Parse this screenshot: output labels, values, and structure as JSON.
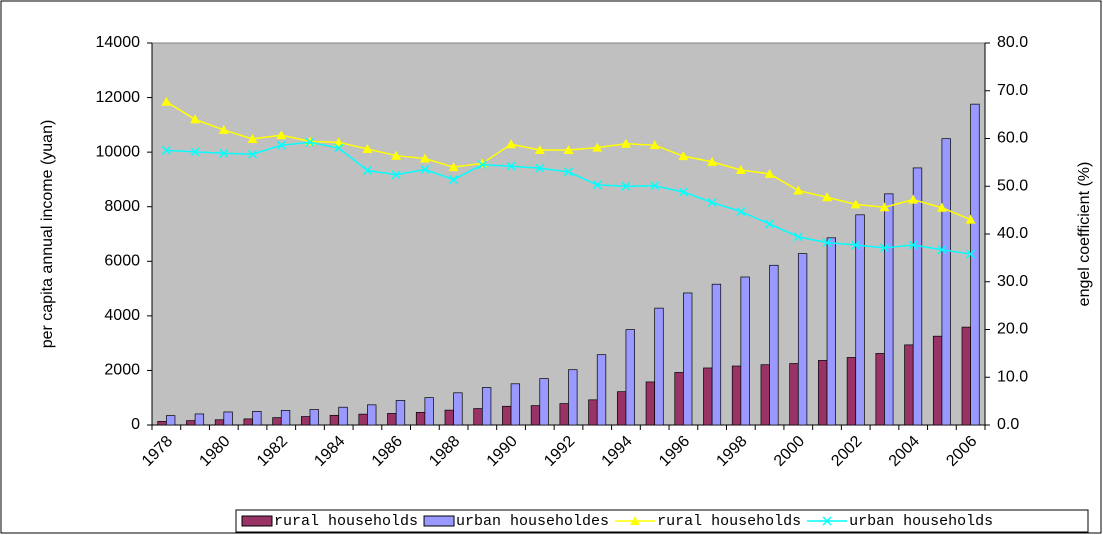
{
  "chart_data": {
    "type": "bar",
    "y_label": "per capita annual income (yuan)",
    "y2_label": "engel coefficient (%)",
    "categories": [
      "1978",
      null,
      "1980",
      null,
      "1982",
      null,
      "1984",
      null,
      "1986",
      null,
      "1988",
      null,
      "1990",
      null,
      "1992",
      null,
      "1994",
      null,
      "1996",
      null,
      "1998",
      null,
      "2000",
      null,
      "2002",
      null,
      "2004",
      null,
      "2006"
    ],
    "ylim": [
      0,
      14000
    ],
    "yticks": [
      0,
      2000,
      4000,
      6000,
      8000,
      10000,
      12000,
      14000
    ],
    "y2lim": [
      0,
      80
    ],
    "y2ticks": [
      {
        "value": 0,
        "label": "0.0"
      },
      {
        "value": 10,
        "label": "10.0"
      },
      {
        "value": 20,
        "label": "20.0"
      },
      {
        "value": 30,
        "label": "30.0"
      },
      {
        "value": 40,
        "label": "40.0"
      },
      {
        "value": 50,
        "label": "50.0"
      },
      {
        "value": 60,
        "label": "60.0"
      },
      {
        "value": 70,
        "label": "70.0"
      },
      {
        "value": 80,
        "label": "80.0"
      }
    ],
    "plot_background": "#c0c0c0",
    "legend": "bottom",
    "series": [
      {
        "name": "rural households",
        "type": "bar",
        "color": "#993366",
        "values": [
          134,
          160,
          191,
          223,
          270,
          310,
          355,
          398,
          424,
          463,
          545,
          602,
          686,
          709,
          784,
          922,
          1221,
          1578,
          1926,
          2090,
          2162,
          2210,
          2253,
          2366,
          2476,
          2622,
          2936,
          3255,
          3587
        ]
      },
      {
        "name": "urban householdes",
        "type": "bar",
        "color": "#9999ff",
        "values": [
          343,
          405,
          478,
          500,
          535,
          565,
          652,
          739,
          900,
          1002,
          1180,
          1374,
          1510,
          1701,
          2027,
          2577,
          3496,
          4283,
          4839,
          5160,
          5425,
          5854,
          6280,
          6860,
          7703,
          8472,
          9422,
          10493,
          11759
        ]
      },
      {
        "name": "rural households",
        "type": "line",
        "marker": "triangle",
        "axis": "y2",
        "color": "#ffff00",
        "values": [
          67.7,
          64.0,
          61.8,
          59.9,
          60.7,
          59.4,
          59.2,
          57.8,
          56.4,
          55.8,
          54.0,
          54.8,
          58.8,
          57.6,
          57.6,
          58.1,
          58.9,
          58.6,
          56.3,
          55.1,
          53.4,
          52.6,
          49.1,
          47.7,
          46.2,
          45.6,
          47.2,
          45.5,
          43.0
        ]
      },
      {
        "name": "urban households",
        "type": "line",
        "marker": "x",
        "axis": "y2",
        "color": "#00ffff",
        "values": [
          57.5,
          57.2,
          56.9,
          56.7,
          58.6,
          59.2,
          58.0,
          53.3,
          52.4,
          53.5,
          51.4,
          54.5,
          54.2,
          53.8,
          53.0,
          50.3,
          50.0,
          50.1,
          48.8,
          46.6,
          44.7,
          42.1,
          39.4,
          38.2,
          37.7,
          37.1,
          37.7,
          36.7,
          35.8
        ]
      }
    ]
  }
}
